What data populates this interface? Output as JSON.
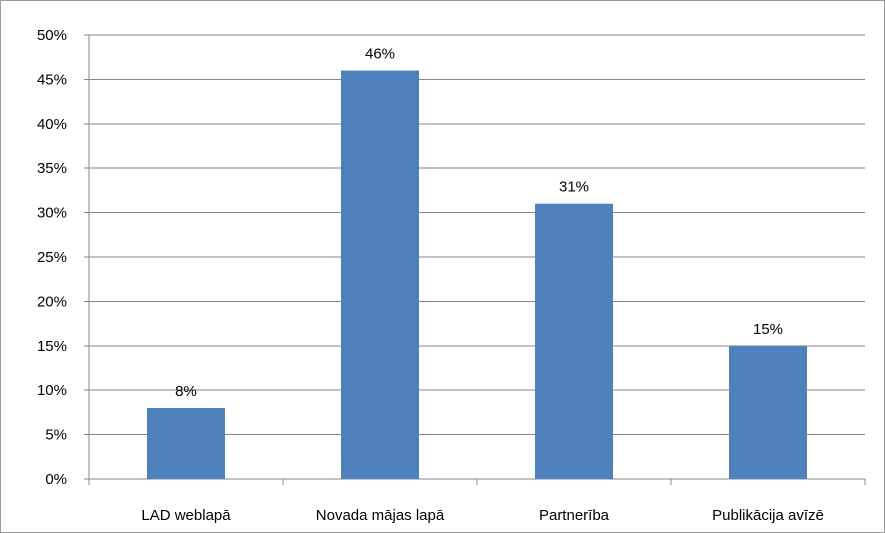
{
  "chart_data": {
    "type": "bar",
    "categories": [
      "LAD weblapā",
      "Novada mājas lapā",
      "Partnerība",
      "Publikācija avīzē"
    ],
    "values": [
      8,
      46,
      31,
      15
    ],
    "data_labels": [
      "8%",
      "46%",
      "31%",
      "15%"
    ],
    "ylim": [
      0,
      50
    ],
    "y_ticks": [
      "0%",
      "5%",
      "10%",
      "15%",
      "20%",
      "25%",
      "30%",
      "35%",
      "40%",
      "45%",
      "50%"
    ],
    "grid": true,
    "legend": "none",
    "colors": {
      "bar": "#4F81BD",
      "grid": "#868686",
      "axis": "#868686"
    }
  }
}
